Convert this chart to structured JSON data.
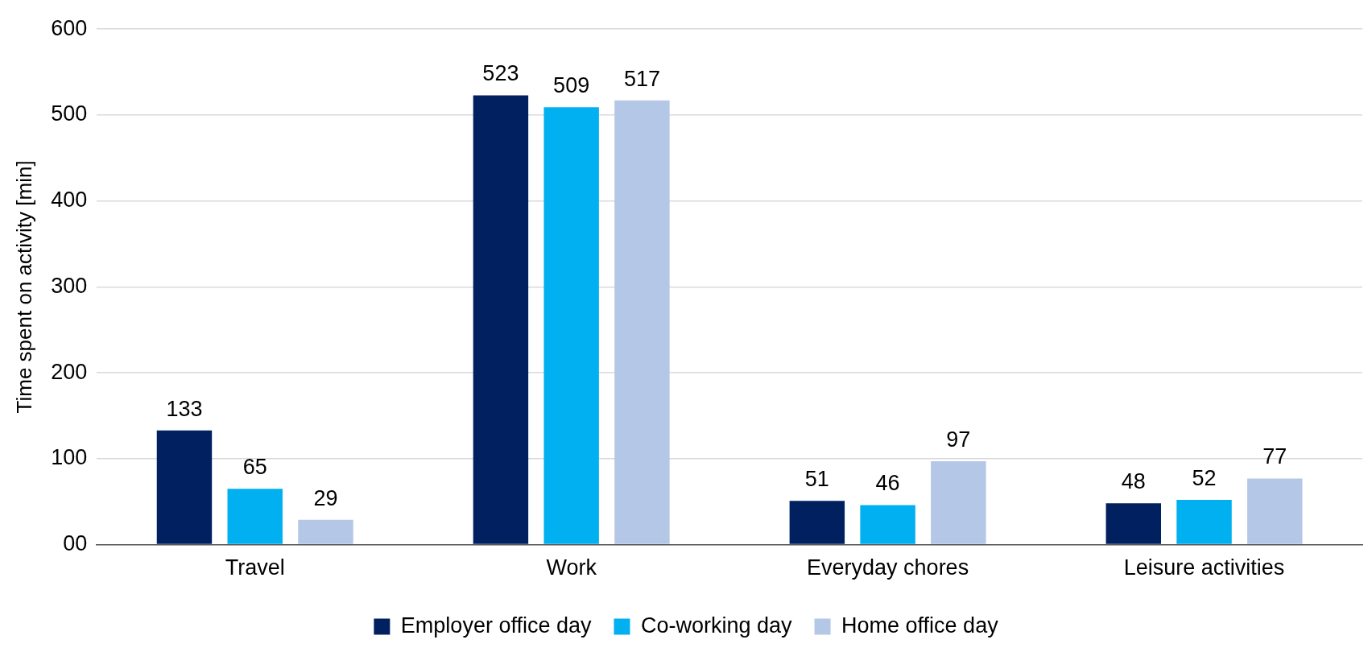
{
  "chart_data": {
    "type": "bar",
    "ylabel": "Time spent on activity [min]",
    "categories": [
      "Travel",
      "Work",
      "Everyday chores",
      "Leisure activities"
    ],
    "series": [
      {
        "name": "Employer office day",
        "color": "#002060",
        "values": [
          133,
          523,
          51,
          48
        ]
      },
      {
        "name": "Co-working day",
        "color": "#00b0f0",
        "values": [
          65,
          509,
          46,
          52
        ]
      },
      {
        "name": "Home office day",
        "color": "#b4c7e7",
        "values": [
          29,
          517,
          97,
          77
        ]
      }
    ],
    "ylim": [
      0,
      600
    ],
    "yticks": [
      {
        "value": 0,
        "label": "00"
      },
      100,
      200,
      300,
      400,
      500,
      600
    ],
    "grid": "y",
    "legend": "bottom",
    "data_labels": true
  }
}
